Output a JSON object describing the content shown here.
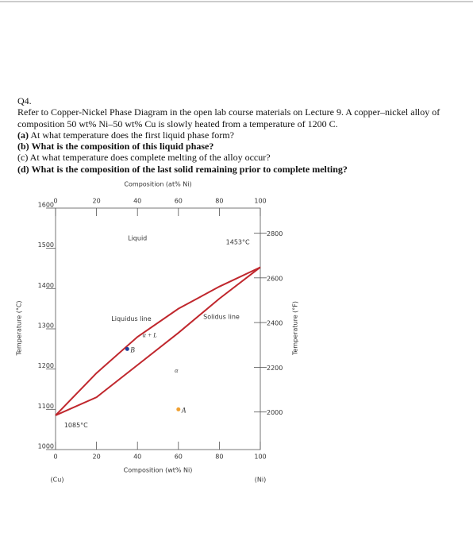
{
  "document": {
    "question_number": "Q4.",
    "intro": "Refer to Copper-Nickel Phase Diagram in the open lab course materials on Lecture 9. A copper–nickel alloy of composition 50 wt% Ni–50 wt% Cu is slowly heated from a temperature of 1200 C.",
    "parts": [
      {
        "label": "(a)",
        "text": "At what temperature does the first liquid phase form?"
      },
      {
        "label": "(b)",
        "text": "What is the composition of this liquid phase?"
      },
      {
        "label": "(c)",
        "text": "At what temperature does complete melting of the alloy occur?"
      },
      {
        "label": "(d)",
        "text": "What is the composition of the last solid remaining prior to complete melting?"
      }
    ]
  },
  "chart_data": {
    "type": "line",
    "x_label": "Composition (wt% Ni)",
    "x2_label": "Composition (at% Ni)",
    "y_label": "Temperature (°C)",
    "y2_label": "Temperature (°F)",
    "x_end_labels": [
      "(Cu)",
      "(Ni)"
    ],
    "xlim": [
      0,
      100
    ],
    "xticks": [
      0,
      20,
      40,
      60,
      80,
      100
    ],
    "x2lim": [
      0,
      100
    ],
    "x2ticks": [
      0,
      20,
      40,
      60,
      80,
      100
    ],
    "ylim": [
      1000,
      1600
    ],
    "yticks": [
      1000,
      1100,
      1200,
      1300,
      1400,
      1500,
      1600
    ],
    "y2lim": [
      1832,
      2912
    ],
    "y2ticks": [
      2000,
      2200,
      2400,
      2600,
      2800
    ],
    "series": [
      {
        "color": "#c0272d",
        "x": [
          0,
          20,
          40,
          60,
          80,
          100
        ],
        "values": [
          1085,
          1190,
          1280,
          1350,
          1405,
          1453
        ]
      },
      {
        "color": "#c0272d",
        "x": [
          0,
          20,
          40,
          60,
          80,
          100
        ],
        "values": [
          1085,
          1130,
          1210,
          1290,
          1375,
          1453
        ]
      }
    ],
    "points": [
      {
        "label": "B",
        "x": 35,
        "y": 1250,
        "color": "#1f3f9a"
      },
      {
        "label": "A",
        "x": 60,
        "y": 1100,
        "color": "#f0a030"
      }
    ],
    "annotations": [
      "Liquid",
      "Liquidus line",
      "α + L",
      "α",
      "Solidus line",
      "1453°C",
      "1085°C"
    ]
  }
}
